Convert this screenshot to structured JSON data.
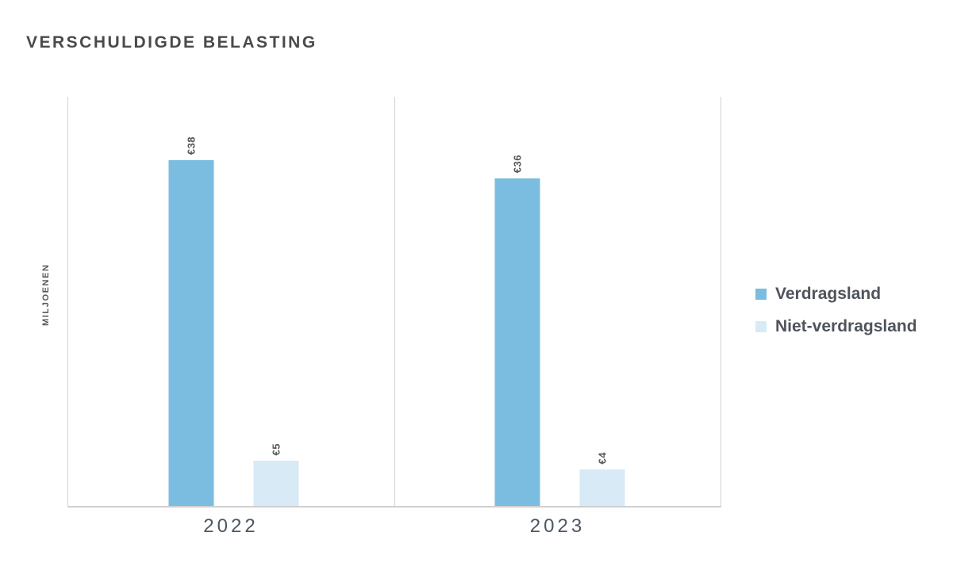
{
  "chart_data": {
    "type": "bar",
    "title": "VERSCHULDIGDE BELASTING",
    "ylabel": "MILJOENEN",
    "xlabel": "",
    "categories": [
      "2022",
      "2023"
    ],
    "series": [
      {
        "name": "Verdragsland",
        "color": "#7ABDE0",
        "values": [
          38,
          36
        ],
        "labels": [
          "€38",
          "€36"
        ]
      },
      {
        "name": "Niet-verdragsland",
        "color": "#D7EAF6",
        "values": [
          5,
          4
        ],
        "labels": [
          "€5",
          "€4"
        ]
      }
    ],
    "ylim": [
      0,
      45
    ],
    "grid": false,
    "legend_position": "right",
    "value_label_orientation": "rotated-90",
    "currency": "EUR"
  }
}
